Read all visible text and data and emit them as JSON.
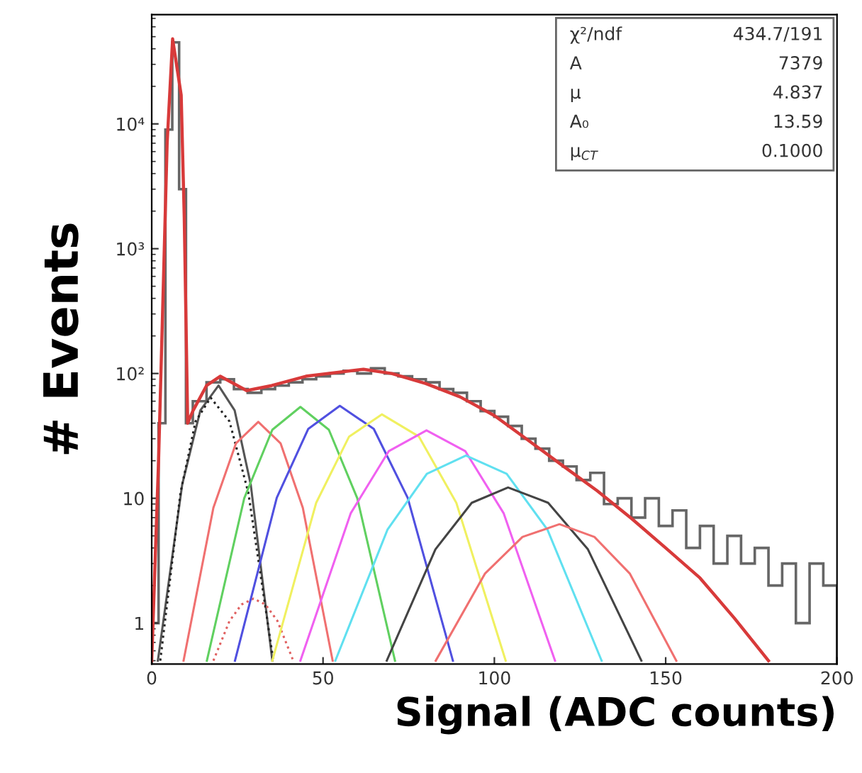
{
  "chart_data": {
    "type": "line",
    "xlabel": "Signal (ADC counts)",
    "ylabel": "# Events",
    "xlim": [
      0,
      200
    ],
    "ylim": [
      0.47,
      75000
    ],
    "log": "y",
    "xticks": [
      0,
      50,
      100,
      150,
      200
    ],
    "yticks": [
      1,
      10,
      {
        "value": 100,
        "label": "10²"
      },
      {
        "value": 1000,
        "label": "10³"
      },
      {
        "value": 10000,
        "label": "10⁴"
      }
    ],
    "grid": false,
    "legend": false,
    "annotations": [
      "χ²/ndf",
      "434.7/191",
      "A",
      "7379",
      "μ",
      "4.837",
      "A₀",
      "13.59",
      "μ$_{CT}$",
      "0.1000"
    ],
    "series": [
      {
        "type": "histogram",
        "color": "#666666",
        "bins": [
          0,
          2,
          4,
          6,
          8,
          10,
          12,
          16,
          20,
          24,
          28,
          32,
          36,
          40,
          44,
          48,
          52,
          56,
          60,
          64,
          68,
          72,
          76,
          80,
          84,
          88,
          92,
          96,
          100,
          104,
          108,
          112,
          116,
          120,
          124,
          128,
          132,
          136,
          140,
          144,
          148,
          152,
          156,
          160,
          164,
          168,
          172,
          176,
          180,
          184,
          188,
          192,
          196,
          200
        ],
        "values": [
          1,
          40,
          9000,
          45000,
          3000,
          40,
          60,
          85,
          90,
          75,
          70,
          75,
          80,
          85,
          90,
          95,
          100,
          105,
          100,
          110,
          100,
          95,
          90,
          85,
          75,
          70,
          60,
          50,
          45,
          38,
          30,
          25,
          20,
          18,
          14,
          16,
          9,
          10,
          7,
          10,
          6,
          8,
          4,
          6,
          3,
          5,
          3,
          4,
          2,
          3,
          1,
          3,
          2
        ]
      },
      {
        "color": "#555555",
        "x": [
          1.8,
          8.9,
          14.2,
          19.5,
          24.2,
          28.9,
          35.2
        ],
        "values": [
          0.5,
          12.9,
          50.7,
          80,
          50.7,
          12.9,
          0.5
        ]
      },
      {
        "color": "#222222",
        "line_style": "dotted",
        "x": [
          2.5,
          8.4,
          12.8,
          17.2,
          22.7,
          28.2,
          35.5
        ],
        "values": [
          0.5,
          11.1,
          41.3,
          64,
          41.3,
          11.1,
          0.5
        ]
      },
      {
        "color": "#e06060",
        "line_style": "dotted",
        "x": [
          18,
          22.7,
          26.2,
          29.7,
          33.2,
          36.7,
          41.3
        ],
        "values": [
          0.5,
          1.04,
          1.41,
          1.57,
          1.41,
          1.04,
          0.5
        ]
      },
      {
        "color": "#f07070",
        "x": [
          9.3,
          18.0,
          24.6,
          31.1,
          37.6,
          44.1,
          52.8
        ],
        "values": [
          0.5,
          8.4,
          27.6,
          41,
          27.6,
          8.4,
          0.5
        ]
      },
      {
        "color": "#60d060",
        "x": [
          16.1,
          27.0,
          35.2,
          43.4,
          51.7,
          60.0,
          71
        ],
        "values": [
          0.5,
          10.0,
          35.4,
          54,
          35.4,
          10.0,
          0.5
        ]
      },
      {
        "color": "#5050e0",
        "x": [
          24.3,
          36.5,
          45.7,
          54.9,
          64.8,
          74.7,
          87.9
        ],
        "values": [
          0.5,
          10.1,
          36.0,
          55,
          36.0,
          10.1,
          0.5
        ]
      },
      {
        "color": "#f0f060",
        "x": [
          35.2,
          48.0,
          57.6,
          67.2,
          78.0,
          88.9,
          103.3
        ],
        "values": [
          0.5,
          9.2,
          31.2,
          47,
          31.2,
          9.2,
          0.5
        ]
      },
      {
        "color": "#f060f0",
        "x": [
          43.4,
          58.1,
          69.2,
          80.2,
          91.5,
          102.7,
          117.7
        ],
        "values": [
          0.5,
          7.6,
          23.9,
          35,
          23.9,
          7.6,
          0.5
        ]
      },
      {
        "color": "#60e0f0",
        "x": [
          53.6,
          68.8,
          80.3,
          91.7,
          103.6,
          115.5,
          131.3
        ],
        "values": [
          0.5,
          5.6,
          15.7,
          22,
          15.7,
          5.6,
          0.5
        ]
      },
      {
        "color": "#444444",
        "x": [
          68.6,
          82.8,
          93.4,
          104,
          115.7,
          127.3,
          142.9
        ],
        "values": [
          0.5,
          3.9,
          9.2,
          12.2,
          9.2,
          3.9,
          0.5
        ]
      },
      {
        "color": "#f07070",
        "x": [
          82.9,
          97.3,
          108.2,
          119,
          129.2,
          139.5,
          153.1
        ],
        "values": [
          0.5,
          2.5,
          4.9,
          6.2,
          4.9,
          2.5,
          0.5
        ]
      },
      {
        "color": "#d83a3a",
        "x": [
          0,
          2,
          3.4,
          4.5,
          6.1,
          8.6,
          9.5,
          10.5,
          12,
          16,
          20,
          27.7,
          35,
          45,
          61.8,
          70,
          80,
          90,
          100,
          110,
          120,
          130,
          140,
          150,
          160,
          170,
          180
        ],
        "values": [
          0.5,
          20,
          520,
          7000,
          48000,
          17000,
          1780,
          40,
          50,
          80,
          95,
          73,
          80,
          95,
          108,
          100,
          83,
          65,
          46,
          29,
          18.2,
          11.5,
          6.9,
          4.0,
          2.3,
          1.1,
          0.5
        ]
      }
    ]
  }
}
